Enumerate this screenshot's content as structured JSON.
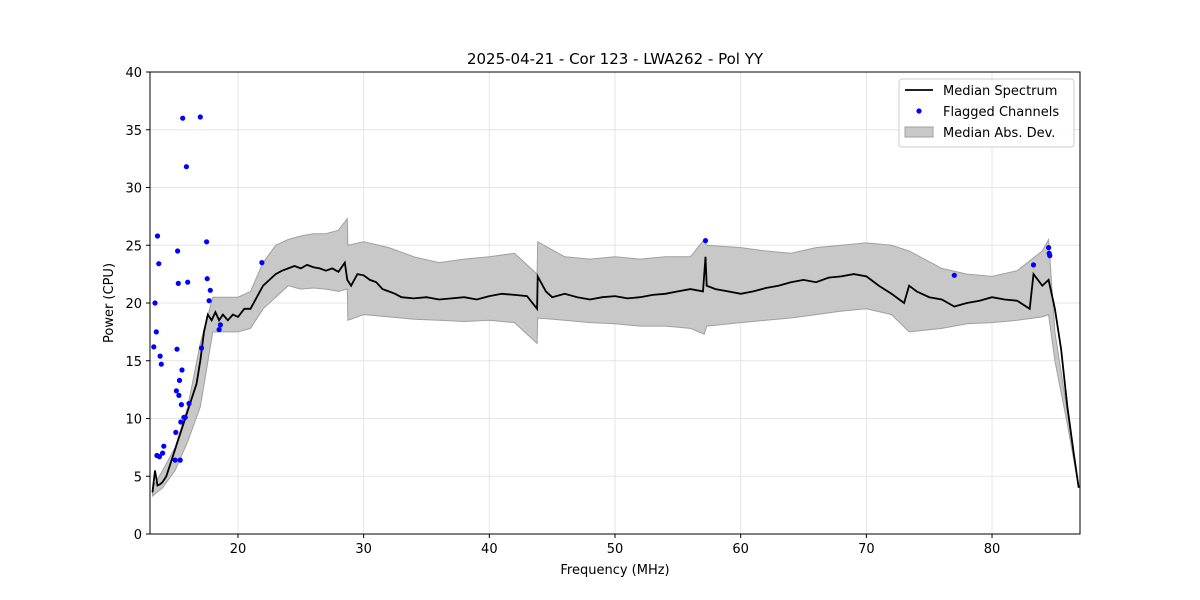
{
  "chart_data": {
    "type": "line",
    "title": "2025-04-21 - Cor 123 - LWA262 - Pol YY",
    "xlabel": "Frequency (MHz)",
    "ylabel": "Power (CPU)",
    "xlim": [
      13,
      87
    ],
    "ylim": [
      0,
      40
    ],
    "grid": true,
    "legend_placement": "top-right",
    "xticks": [
      20,
      30,
      40,
      50,
      60,
      70,
      80
    ],
    "yticks": [
      0,
      5,
      10,
      15,
      20,
      25,
      30,
      35,
      40
    ],
    "xtick_labels": [
      "20",
      "30",
      "40",
      "50",
      "60",
      "70",
      "80"
    ],
    "ytick_labels": [
      "0",
      "5",
      "10",
      "15",
      "20",
      "25",
      "30",
      "35",
      "40"
    ],
    "colors": {
      "median": "#000000",
      "flagged": "#0000ff",
      "mad_fill": "#c8c8c8",
      "mad_edge": "#a0a0a0",
      "grid": "#e6e6e6"
    },
    "series": [
      {
        "name": "Median Spectrum",
        "x": [
          13.2,
          13.4,
          13.6,
          13.8,
          14.0,
          14.3,
          14.6,
          14.9,
          15.2,
          15.5,
          15.8,
          16.1,
          16.4,
          16.7,
          17.0,
          17.3,
          17.6,
          17.9,
          18.2,
          18.5,
          18.8,
          19.2,
          19.6,
          20.0,
          20.5,
          21.0,
          21.5,
          22.0,
          22.5,
          23.0,
          23.5,
          24.0,
          24.5,
          25.0,
          25.5,
          26.0,
          26.5,
          27.0,
          27.5,
          28.0,
          28.5,
          28.7,
          29.0,
          29.5,
          30.0,
          30.5,
          31.0,
          31.5,
          32.0,
          32.5,
          33.0,
          34.0,
          35.0,
          36.0,
          37.0,
          38.0,
          39.0,
          40.0,
          41.0,
          42.0,
          43.0,
          43.8,
          43.85,
          44.5,
          45.0,
          46.0,
          47.0,
          48.0,
          49.0,
          50.0,
          51.0,
          52.0,
          53.0,
          54.0,
          55.0,
          56.0,
          57.0,
          57.2,
          57.3,
          58.0,
          59.0,
          60.0,
          61.0,
          62.0,
          63.0,
          64.0,
          65.0,
          66.0,
          67.0,
          68.0,
          69.0,
          70.0,
          71.0,
          72.0,
          73.0,
          73.4,
          74.0,
          75.0,
          76.0,
          77.0,
          78.0,
          79.0,
          80.0,
          81.0,
          82.0,
          83.0,
          83.3,
          84.0,
          84.5,
          85.0,
          85.5,
          86.0,
          86.5,
          86.9
        ],
        "values": [
          3.6,
          5.5,
          4.2,
          4.3,
          4.5,
          5.0,
          6.0,
          7.0,
          8.0,
          9.0,
          10.0,
          11.0,
          12.0,
          13.0,
          15.0,
          17.5,
          19.0,
          18.5,
          19.2,
          18.5,
          19.0,
          18.5,
          19.0,
          18.8,
          19.5,
          19.5,
          20.5,
          21.5,
          22.0,
          22.5,
          22.8,
          23.0,
          23.2,
          23.0,
          23.3,
          23.1,
          23.0,
          22.8,
          23.0,
          22.7,
          23.5,
          22.0,
          21.5,
          22.5,
          22.4,
          22.0,
          21.8,
          21.2,
          21.0,
          20.8,
          20.5,
          20.4,
          20.5,
          20.3,
          20.4,
          20.5,
          20.3,
          20.6,
          20.8,
          20.7,
          20.6,
          19.5,
          22.3,
          21.0,
          20.5,
          20.8,
          20.5,
          20.3,
          20.5,
          20.6,
          20.4,
          20.5,
          20.7,
          20.8,
          21.0,
          21.2,
          21.0,
          24.0,
          21.5,
          21.2,
          21.0,
          20.8,
          21.0,
          21.3,
          21.5,
          21.8,
          22.0,
          21.8,
          22.2,
          22.3,
          22.5,
          22.3,
          21.5,
          20.8,
          20.0,
          21.5,
          21.0,
          20.5,
          20.3,
          19.7,
          20.0,
          20.2,
          20.5,
          20.3,
          20.2,
          19.5,
          22.5,
          21.5,
          22.0,
          19.5,
          16.0,
          11.0,
          7.0,
          4.0
        ]
      },
      {
        "name": "Flagged Channels",
        "x": [
          13.3,
          13.4,
          13.5,
          13.55,
          13.6,
          13.7,
          13.75,
          13.8,
          13.9,
          14.0,
          14.1,
          15.0,
          15.05,
          15.1,
          15.15,
          15.2,
          15.25,
          15.3,
          15.35,
          15.4,
          15.45,
          15.5,
          15.55,
          15.6,
          15.7,
          15.8,
          15.9,
          16.0,
          16.1,
          17.0,
          17.1,
          17.5,
          17.55,
          17.7,
          17.8,
          18.5,
          18.6,
          21.9,
          57.2,
          77.0,
          83.3,
          84.5,
          84.55,
          84.6
        ],
        "values": [
          16.2,
          20.0,
          17.5,
          6.8,
          25.8,
          23.4,
          6.7,
          15.4,
          14.7,
          7.0,
          7.6,
          6.4,
          8.8,
          12.4,
          16.0,
          24.5,
          21.7,
          12.0,
          13.3,
          6.4,
          9.7,
          11.2,
          14.2,
          36.0,
          10.1,
          10.1,
          31.8,
          21.8,
          11.3,
          36.1,
          16.1,
          25.3,
          22.1,
          20.2,
          21.1,
          17.7,
          18.1,
          23.5,
          25.4,
          22.4,
          23.3,
          24.8,
          24.3,
          24.1
        ]
      },
      {
        "name": "Median Abs. Dev.",
        "x": [
          13.2,
          14.0,
          15.0,
          16.0,
          17.0,
          18.0,
          19.0,
          20.0,
          21.0,
          22.0,
          23.0,
          24.0,
          25.0,
          26.0,
          27.0,
          28.0,
          28.7,
          28.75,
          30.0,
          32.0,
          34.0,
          36.0,
          38.0,
          40.0,
          42.0,
          43.8,
          43.85,
          46.0,
          48.0,
          50.0,
          52.0,
          54.0,
          56.0,
          57.1,
          57.3,
          60.0,
          62.0,
          64.0,
          66.0,
          68.0,
          70.0,
          72.0,
          73.4,
          76.0,
          78.0,
          80.0,
          82.0,
          84.0,
          84.5,
          85.0,
          86.0,
          86.9
        ],
        "lower": [
          3.3,
          4.0,
          5.5,
          8.0,
          11.0,
          17.5,
          17.5,
          17.5,
          17.8,
          19.5,
          20.5,
          21.5,
          21.2,
          21.3,
          21.2,
          21.0,
          21.2,
          18.5,
          19.0,
          18.8,
          18.6,
          18.5,
          18.4,
          18.5,
          18.3,
          16.5,
          18.7,
          18.5,
          18.3,
          18.2,
          18.0,
          18.0,
          17.8,
          17.3,
          18.0,
          18.3,
          18.5,
          18.7,
          19.0,
          19.3,
          19.5,
          19.0,
          17.5,
          17.8,
          18.2,
          18.3,
          18.5,
          18.8,
          19.0,
          15.0,
          9.5,
          4.0
        ],
        "upper": [
          4.0,
          5.5,
          7.5,
          11.0,
          16.5,
          20.5,
          20.5,
          20.5,
          21.0,
          23.5,
          25.0,
          25.5,
          25.8,
          26.0,
          26.0,
          26.3,
          27.3,
          25.0,
          25.3,
          24.8,
          24.0,
          23.5,
          23.8,
          24.0,
          24.3,
          22.5,
          25.3,
          24.0,
          23.8,
          24.0,
          23.8,
          24.0,
          24.0,
          25.5,
          25.0,
          24.8,
          24.5,
          24.3,
          24.8,
          25.0,
          25.2,
          25.0,
          24.5,
          23.0,
          22.5,
          22.3,
          22.8,
          24.5,
          25.5,
          17.5,
          10.5,
          4.1
        ]
      }
    ],
    "legend": [
      {
        "label": "Median Spectrum",
        "kind": "line"
      },
      {
        "label": "Flagged Channels",
        "kind": "dot"
      },
      {
        "label": "Median Abs. Dev.",
        "kind": "patch"
      }
    ]
  }
}
